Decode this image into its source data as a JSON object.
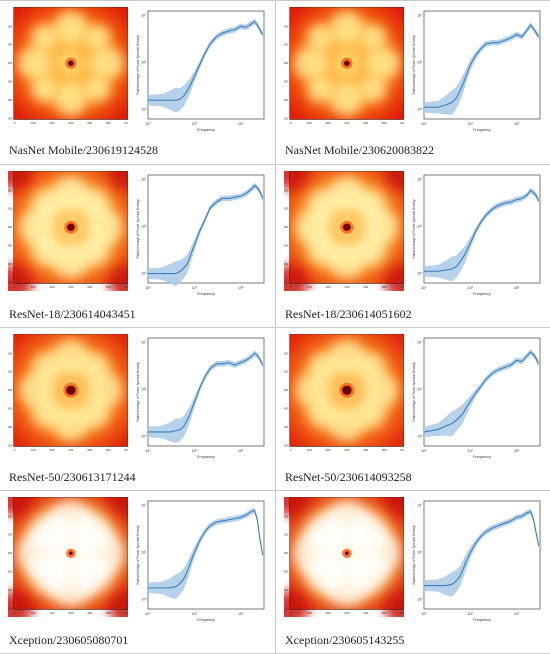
{
  "panels": [
    {
      "caption": "NasNet Mobile/230619124528",
      "variant": "nasnet"
    },
    {
      "caption": "NasNet Mobile/230620083822",
      "variant": "nasnet"
    },
    {
      "caption": "ResNet-18/230614043451",
      "variant": "resnet18"
    },
    {
      "caption": "ResNet-18/230614051602",
      "variant": "resnet18"
    },
    {
      "caption": "ResNet-50/230613171244",
      "variant": "resnet50"
    },
    {
      "caption": "ResNet-50/230614093258",
      "variant": "resnet50"
    },
    {
      "caption": "Xception/230605080701",
      "variant": "xception"
    },
    {
      "caption": "Xception/230605143255",
      "variant": "xception"
    }
  ],
  "spectrum_axes": {
    "ticks": [
      "0",
      "100",
      "200",
      "300",
      "400",
      "500",
      "600"
    ]
  },
  "profile_axes": {
    "xlabel": "Frequency",
    "ylabel": "Radial Average of Power Spectral Density",
    "xticks": [
      "10⁰",
      "10¹",
      "10²"
    ],
    "yticks": [
      "10³",
      "10⁵",
      "10⁷"
    ]
  },
  "colors": {
    "line": "#3b7fb8",
    "band": "#a9c9e6",
    "heat_hot": "#fff7a8",
    "heat_mid": "#ff9a1a",
    "heat_cold": "#d81f0a"
  },
  "chart_data": [
    {
      "type": "line",
      "panel": 1,
      "x": [
        1,
        2,
        3,
        4,
        5,
        6,
        7,
        8,
        10,
        13,
        17,
        22,
        30,
        40,
        55,
        75,
        100,
        130,
        170,
        200,
        230,
        260,
        300
      ],
      "y": [
        3.4,
        3.4,
        3.4,
        3.4,
        3.45,
        3.6,
        3.8,
        4.0,
        4.4,
        4.9,
        5.4,
        5.8,
        6.1,
        6.25,
        6.35,
        6.4,
        6.55,
        6.5,
        6.65,
        6.75,
        6.6,
        6.4,
        6.2
      ]
    },
    {
      "type": "line",
      "panel": 2,
      "x": [
        1,
        2,
        3,
        4,
        5,
        6,
        7,
        8,
        10,
        13,
        17,
        22,
        30,
        40,
        55,
        75,
        100,
        130,
        170,
        200,
        230,
        260,
        300
      ],
      "y": [
        3.1,
        3.1,
        3.2,
        3.3,
        3.5,
        3.8,
        4.1,
        4.4,
        4.9,
        5.3,
        5.6,
        5.8,
        5.85,
        5.85,
        5.95,
        6.05,
        6.2,
        6.1,
        6.4,
        6.6,
        6.45,
        6.3,
        6.1
      ]
    },
    {
      "type": "line",
      "panel": 3,
      "x": [
        1,
        2,
        3,
        4,
        5,
        6,
        7,
        8,
        10,
        13,
        17,
        22,
        30,
        40,
        55,
        75,
        100,
        130,
        170,
        200,
        230,
        260,
        300
      ],
      "y": [
        3.0,
        3.0,
        3.0,
        3.0,
        3.1,
        3.25,
        3.4,
        3.7,
        4.2,
        4.8,
        5.3,
        5.8,
        6.05,
        6.2,
        6.2,
        6.25,
        6.3,
        6.4,
        6.6,
        6.75,
        6.65,
        6.5,
        6.2
      ]
    },
    {
      "type": "line",
      "panel": 4,
      "x": [
        1,
        2,
        3,
        4,
        5,
        6,
        7,
        8,
        10,
        13,
        17,
        22,
        30,
        40,
        55,
        75,
        100,
        130,
        170,
        200,
        230,
        260,
        300
      ],
      "y": [
        3.1,
        3.1,
        3.15,
        3.2,
        3.3,
        3.5,
        3.7,
        3.9,
        4.3,
        4.8,
        5.2,
        5.5,
        5.75,
        5.9,
        6.0,
        6.05,
        6.15,
        6.2,
        6.35,
        6.55,
        6.45,
        6.35,
        6.1
      ]
    },
    {
      "type": "line",
      "panel": 5,
      "x": [
        1,
        2,
        3,
        4,
        5,
        6,
        7,
        8,
        10,
        13,
        17,
        22,
        30,
        40,
        55,
        75,
        100,
        130,
        170,
        200,
        230,
        260,
        300
      ],
      "y": [
        3.2,
        3.2,
        3.2,
        3.25,
        3.3,
        3.45,
        3.7,
        3.95,
        4.45,
        5.05,
        5.55,
        5.9,
        6.1,
        6.1,
        6.15,
        6.05,
        6.15,
        6.25,
        6.4,
        6.55,
        6.45,
        6.3,
        6.05
      ]
    },
    {
      "type": "line",
      "panel": 6,
      "x": [
        1,
        2,
        3,
        4,
        5,
        6,
        7,
        8,
        10,
        13,
        17,
        22,
        30,
        40,
        55,
        75,
        100,
        130,
        170,
        200,
        230,
        260,
        300
      ],
      "y": [
        3.2,
        3.3,
        3.45,
        3.55,
        3.7,
        3.85,
        4.0,
        4.2,
        4.5,
        4.85,
        5.15,
        5.45,
        5.7,
        5.85,
        5.95,
        6.05,
        6.25,
        6.2,
        6.45,
        6.6,
        6.5,
        6.35,
        6.1
      ]
    },
    {
      "type": "line",
      "panel": 7,
      "x": [
        1,
        2,
        3,
        4,
        5,
        6,
        7,
        8,
        10,
        13,
        17,
        22,
        30,
        40,
        55,
        75,
        100,
        130,
        170,
        200,
        230,
        260,
        300
      ],
      "y": [
        3.5,
        3.5,
        3.5,
        3.55,
        3.7,
        3.9,
        4.2,
        4.5,
        5.0,
        5.5,
        5.9,
        6.15,
        6.3,
        6.35,
        6.4,
        6.45,
        6.5,
        6.6,
        6.75,
        6.8,
        6.4,
        5.6,
        4.9
      ]
    },
    {
      "type": "line",
      "panel": 8,
      "x": [
        1,
        2,
        3,
        4,
        5,
        6,
        7,
        8,
        10,
        13,
        17,
        22,
        30,
        40,
        55,
        75,
        100,
        130,
        170,
        200,
        230,
        260,
        300
      ],
      "y": [
        3.6,
        3.6,
        3.6,
        3.65,
        3.8,
        4.0,
        4.3,
        4.6,
        5.0,
        5.4,
        5.7,
        5.9,
        6.05,
        6.15,
        6.25,
        6.35,
        6.5,
        6.55,
        6.7,
        6.75,
        6.45,
        5.9,
        5.3
      ]
    }
  ]
}
